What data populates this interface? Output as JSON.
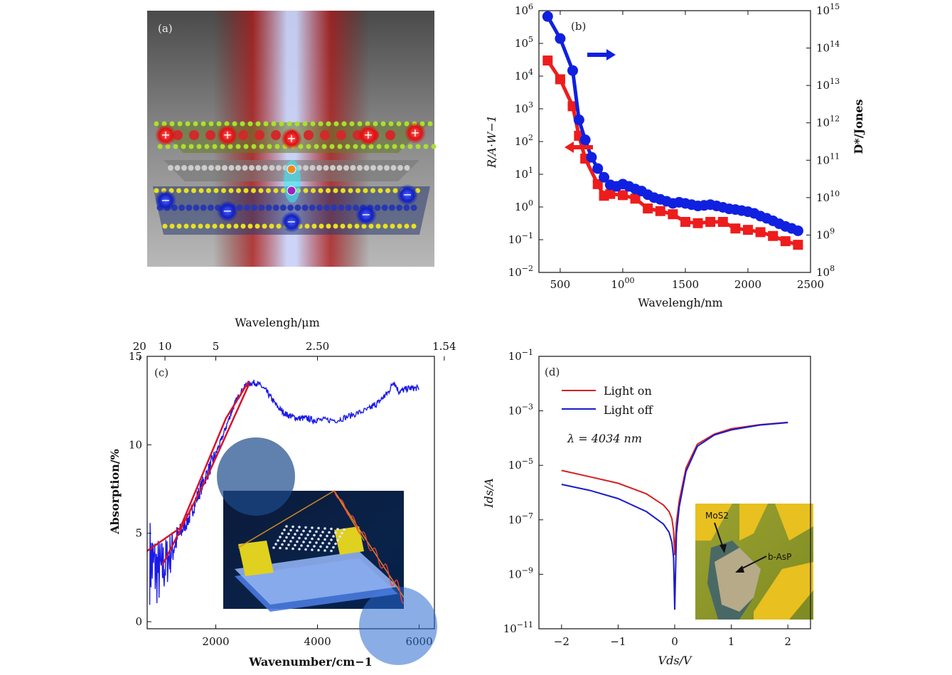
{
  "colors": {
    "red": "#ee1c1c",
    "blue": "#1020e0",
    "blue_trace": "#1a1ae6",
    "fit_red": "#d8122a",
    "iv_red": "#d42020",
    "iv_blue": "#1a1acc"
  },
  "panel_a": {
    "label": "(a)",
    "image": "illustration of a layered heterostructure under a vertical light beam with charge carriers",
    "icons": [
      "plus-charge",
      "minus-charge"
    ]
  },
  "chart_data": [
    {
      "id": "b",
      "type": "scatter",
      "panel_label": "(b)",
      "title": "",
      "xlabel": "Wavelengh/nm",
      "ylabel_left": "R/A·W−1",
      "ylabel_right": "D*/Jones",
      "xlim": [
        330,
        2500
      ],
      "ylim_left": [
        0.01,
        1000000
      ],
      "ylim_right": [
        100000000,
        1000000000000000
      ],
      "log_y": true,
      "xticks": [
        "500",
        "1000",
        "1500",
        "2000",
        "2500"
      ],
      "yticks_left": [
        "10−2",
        "10−1",
        "100",
        "101",
        "102",
        "103",
        "104",
        "105",
        "106"
      ],
      "yticks_right": [
        "108",
        "109",
        "1010",
        "1011",
        "1012",
        "1013",
        "1014",
        "1015"
      ],
      "series": [
        {
          "axis": "left",
          "marker": "square",
          "color": "#ee1c1c",
          "x": [
            400,
            500,
            600,
            650,
            700,
            800,
            850,
            900,
            1000,
            1100,
            1200,
            1300,
            1400,
            1500,
            1600,
            1700,
            1800,
            1900,
            2000,
            2100,
            2200,
            2300,
            2400
          ],
          "y": [
            30000,
            8000,
            1200,
            150,
            30,
            5,
            2.2,
            2.5,
            2.3,
            1.8,
            0.9,
            0.75,
            0.6,
            0.35,
            0.32,
            0.35,
            0.35,
            0.22,
            0.2,
            0.17,
            0.13,
            0.09,
            0.07
          ]
        },
        {
          "axis": "right",
          "marker": "circle",
          "color": "#1020e0",
          "x": [
            400,
            500,
            600,
            650,
            700,
            750,
            800,
            850,
            900,
            950,
            1000,
            1050,
            1100,
            1150,
            1200,
            1250,
            1300,
            1350,
            1400,
            1450,
            1500,
            1550,
            1600,
            1650,
            1700,
            1750,
            1800,
            1850,
            1900,
            1950,
            2000,
            2050,
            2100,
            2150,
            2200,
            2250,
            2300,
            2350,
            2400
          ],
          "y": [
            700000000000000,
            180000000000000,
            25000000000000,
            1200000000000,
            350000000000,
            120000000000,
            60000000000,
            35000000000,
            22000000000,
            20000000000,
            23000000000,
            20000000000,
            17000000000,
            15000000000,
            12000000000,
            10000000000,
            9000000000,
            8000000000,
            7000000000,
            7500000000,
            7000000000,
            6500000000,
            6000000000,
            6200000000,
            6500000000,
            6000000000,
            5500000000,
            5000000000,
            4800000000,
            4500000000,
            4200000000,
            3800000000,
            3200000000,
            2800000000,
            2400000000,
            2000000000,
            1700000000,
            1500000000,
            1300000000
          ]
        }
      ]
    },
    {
      "id": "c",
      "type": "line",
      "panel_label": "(c)",
      "title": "",
      "xlabel": "Wavenumber/cm−1",
      "ylabel": "Absorption/%",
      "top_xlabel": "Wavelengh/μm",
      "xlim": [
        650,
        6300
      ],
      "ylim": [
        -0.4,
        15
      ],
      "xticks": [
        "2000",
        "4000",
        "6000"
      ],
      "yticks": [
        "0",
        "5",
        "10",
        "15"
      ],
      "top_xticks": [
        "20",
        "10",
        "5",
        "2.50",
        "1.54"
      ],
      "series": [
        {
          "name": "",
          "color": "#1a1ae6",
          "x": [
            700,
            800,
            900,
            1000,
            1100,
            1200,
            1300,
            1400,
            1500,
            1600,
            1700,
            1800,
            1900,
            2000,
            2100,
            2200,
            2300,
            2400,
            2500,
            2600,
            2700,
            2800,
            2900,
            3000,
            3100,
            3200,
            3300,
            3400,
            3500,
            3600,
            3700,
            3800,
            3900,
            4000,
            4200,
            4400,
            4600,
            4800,
            5000,
            5100,
            5200,
            5300,
            5400,
            5500,
            5600,
            5700,
            5800,
            5900,
            6000
          ],
          "y": [
            3.5,
            3.0,
            2.8,
            3.2,
            3.8,
            4.5,
            5.0,
            5.5,
            6.0,
            6.8,
            7.5,
            8.2,
            8.8,
            9.5,
            10.2,
            11.0,
            11.8,
            12.5,
            13.0,
            13.4,
            13.5,
            13.5,
            13.3,
            13.0,
            12.6,
            12.2,
            11.9,
            11.7,
            11.6,
            11.5,
            11.5,
            11.5,
            11.4,
            11.4,
            11.4,
            11.4,
            11.6,
            11.8,
            12.0,
            12.2,
            12.4,
            12.7,
            13.0,
            13.6,
            13.0,
            13.1,
            13.2,
            13.2,
            13.2
          ]
        },
        {
          "name": "",
          "color": "#d8122a",
          "x": [
            650,
            1300,
            2200,
            2650
          ],
          "y": [
            4.0,
            5.3,
            11.5,
            13.6
          ]
        },
        {
          "name": "",
          "color": "#d8122a",
          "x": [
            950,
            1800,
            2650
          ],
          "y": [
            3.2,
            8.0,
            13.4
          ]
        }
      ],
      "inset": "illustration of the device on a substrate with an electromagnetic wave"
    },
    {
      "id": "d",
      "type": "line",
      "panel_label": "(d)",
      "title": "",
      "xlabel": "Vds/V",
      "ylabel": "Ids/A",
      "log_y": true,
      "xlim": [
        -2.4,
        2.4
      ],
      "ylim": [
        1e-11,
        0.1
      ],
      "xticks": [
        "−2",
        "−1",
        "0",
        "1",
        "2"
      ],
      "yticks": [
        "10−11",
        "10−9",
        "10−7",
        "10−5",
        "10−3",
        "10−1"
      ],
      "annotation": "λ = 4034 nm",
      "series": [
        {
          "name": "Light on",
          "color": "#d42020",
          "x": [
            -2.0,
            -1.5,
            -1.0,
            -0.5,
            -0.2,
            -0.1,
            -0.05,
            -0.02,
            0.0,
            0.03,
            0.08,
            0.2,
            0.4,
            0.7,
            1.0,
            1.5,
            2.0
          ],
          "y": [
            6.5e-06,
            3.8e-06,
            2.2e-06,
            9e-07,
            3.5e-07,
            2e-07,
            1.1e-07,
            4e-08,
            5e-09,
            8e-08,
            5e-07,
            8e-06,
            6e-05,
            0.00014,
            0.00022,
            0.00031,
            0.00038
          ]
        },
        {
          "name": "Light off",
          "color": "#1a1acc",
          "x": [
            -2.0,
            -1.5,
            -1.0,
            -0.5,
            -0.2,
            -0.1,
            -0.05,
            -0.02,
            0.0,
            0.03,
            0.08,
            0.2,
            0.4,
            0.7,
            1.0,
            1.5,
            2.0
          ],
          "y": [
            2e-06,
            1.2e-06,
            6e-07,
            2e-07,
            7e-08,
            3.5e-08,
            1.5e-08,
            4e-09,
            5e-11,
            3e-08,
            3e-07,
            6e-06,
            5e-05,
            0.00013,
            0.0002,
            0.0003,
            0.00037
          ]
        }
      ],
      "inset_labels": [
        "MoS2",
        "b-AsP"
      ]
    }
  ]
}
